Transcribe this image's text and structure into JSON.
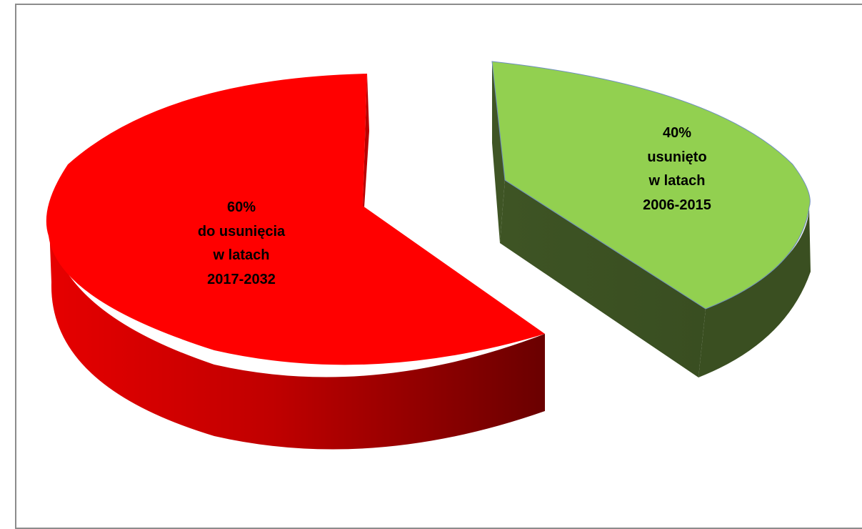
{
  "chart_data": {
    "type": "pie",
    "title": "",
    "slices": [
      {
        "value": 60,
        "label_lines": [
          "60%",
          "do usunięcia",
          "w latach",
          "2017-2032"
        ],
        "color": "#ff0000"
      },
      {
        "value": 40,
        "label_lines": [
          "40%",
          "usunięto",
          "w latach",
          "2006-2015"
        ],
        "color": "#92d050"
      }
    ],
    "legend": "none"
  }
}
